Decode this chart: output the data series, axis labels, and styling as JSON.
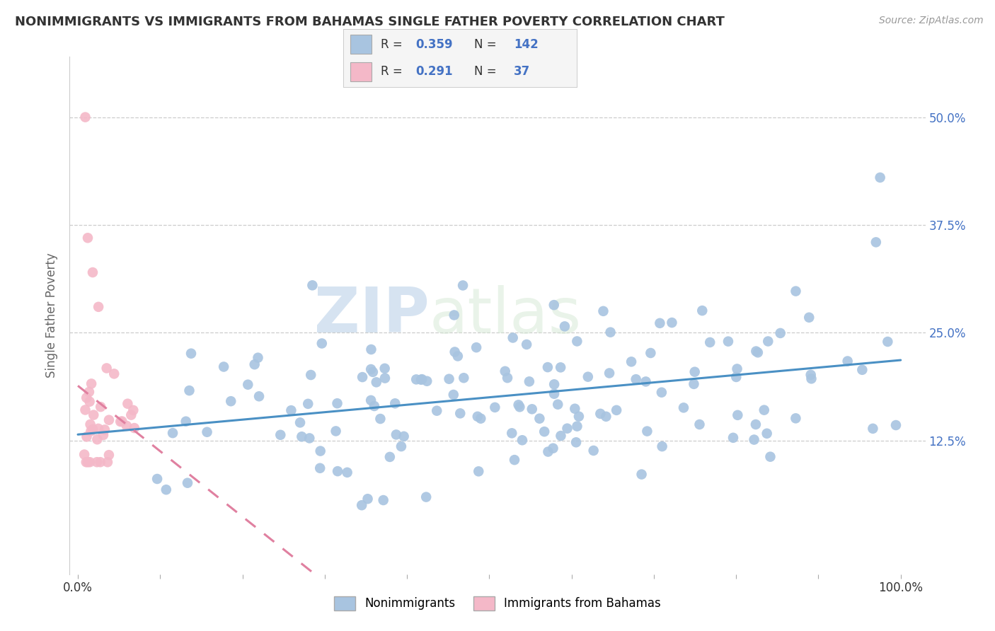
{
  "title": "NONIMMIGRANTS VS IMMIGRANTS FROM BAHAMAS SINGLE FATHER POVERTY CORRELATION CHART",
  "source": "Source: ZipAtlas.com",
  "ylabel": "Single Father Poverty",
  "watermark": "ZIPatlas",
  "R_nonimm": 0.359,
  "N_nonimm": 142,
  "R_imm": 0.291,
  "N_imm": 37,
  "nonimm_color": "#a8c4e0",
  "imm_color": "#f4b8c8",
  "nonimm_line_color": "#4a90c4",
  "imm_line_color": "#e080a0",
  "title_color": "#333333",
  "axis_label_color": "#666666",
  "legend_r_color": "#4472c4",
  "background_color": "#ffffff",
  "ytick_labels": [
    "12.5%",
    "25.0%",
    "37.5%",
    "50.0%"
  ],
  "ytick_values": [
    0.125,
    0.25,
    0.375,
    0.5
  ]
}
